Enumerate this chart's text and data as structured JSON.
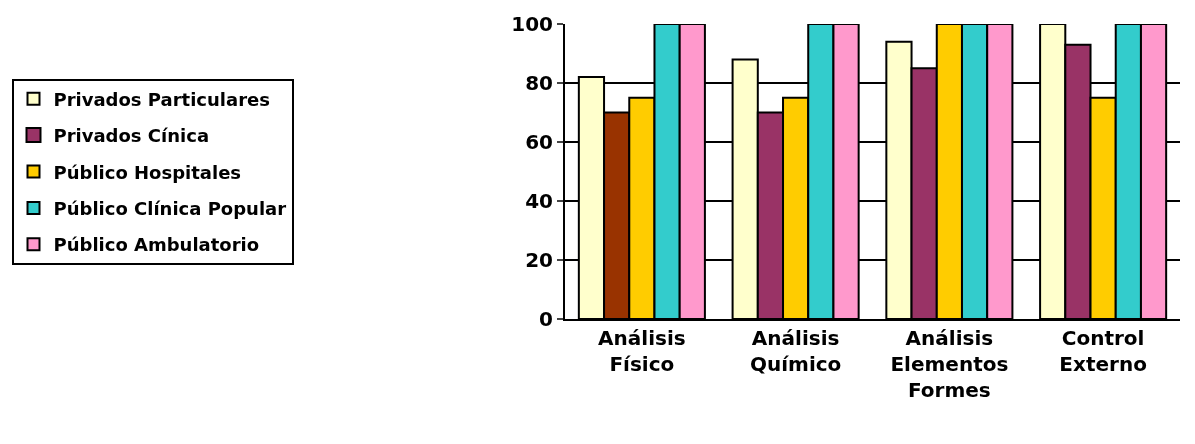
{
  "chart_data": {
    "type": "bar",
    "categories": [
      "Análisis Físico",
      "Análisis Químico",
      "Análisis Elementos Formes",
      "Control Externo"
    ],
    "series": [
      {
        "name": "Privados Particulares",
        "color": "#ffffcc",
        "values": [
          82,
          88,
          94,
          100
        ]
      },
      {
        "name": "Privados Cínica",
        "color": "#993366",
        "colors": [
          "#993300",
          "#993366",
          "#993366",
          "#993366"
        ],
        "values": [
          70,
          70,
          85,
          93
        ]
      },
      {
        "name": "Público Hospitales",
        "color": "#ffcc00",
        "values": [
          75,
          75,
          100,
          75
        ]
      },
      {
        "name": "Público Clínica Popular",
        "color": "#33cccc",
        "values": [
          100,
          100,
          100,
          100
        ]
      },
      {
        "name": "Público Ambulatorio",
        "color": "#ff99cc",
        "values": [
          100,
          100,
          100,
          100
        ]
      }
    ],
    "ylim": [
      0,
      100
    ],
    "yticks": [
      0,
      20,
      40,
      60,
      80,
      100
    ],
    "grid": "y",
    "legend": "left"
  }
}
